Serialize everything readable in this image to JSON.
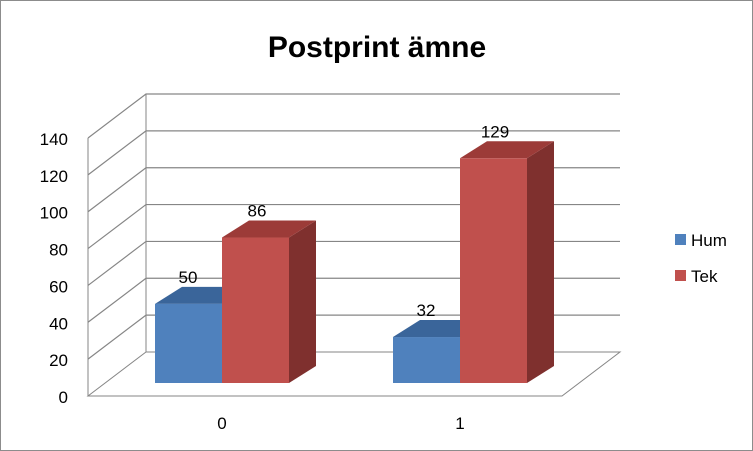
{
  "chart_data": {
    "type": "bar",
    "title": "Postprint ämne",
    "xlabel": "",
    "ylabel": "",
    "categories": [
      "0",
      "1"
    ],
    "series": [
      {
        "name": "Hum",
        "values": [
          50,
          32
        ],
        "color": "#4F81BD",
        "side_color": "#2F5A8C",
        "top_color": "#3A659A"
      },
      {
        "name": "Tek",
        "values": [
          86,
          129
        ],
        "color": "#C0504D",
        "side_color": "#7F302E",
        "top_color": "#9C3B38"
      }
    ],
    "ylim": [
      0,
      140
    ],
    "yticks": [
      "0",
      "20",
      "40",
      "60",
      "80",
      "100",
      "120",
      "140"
    ],
    "grid": true,
    "legend_position": "right",
    "view": "3d-clustered-column"
  }
}
